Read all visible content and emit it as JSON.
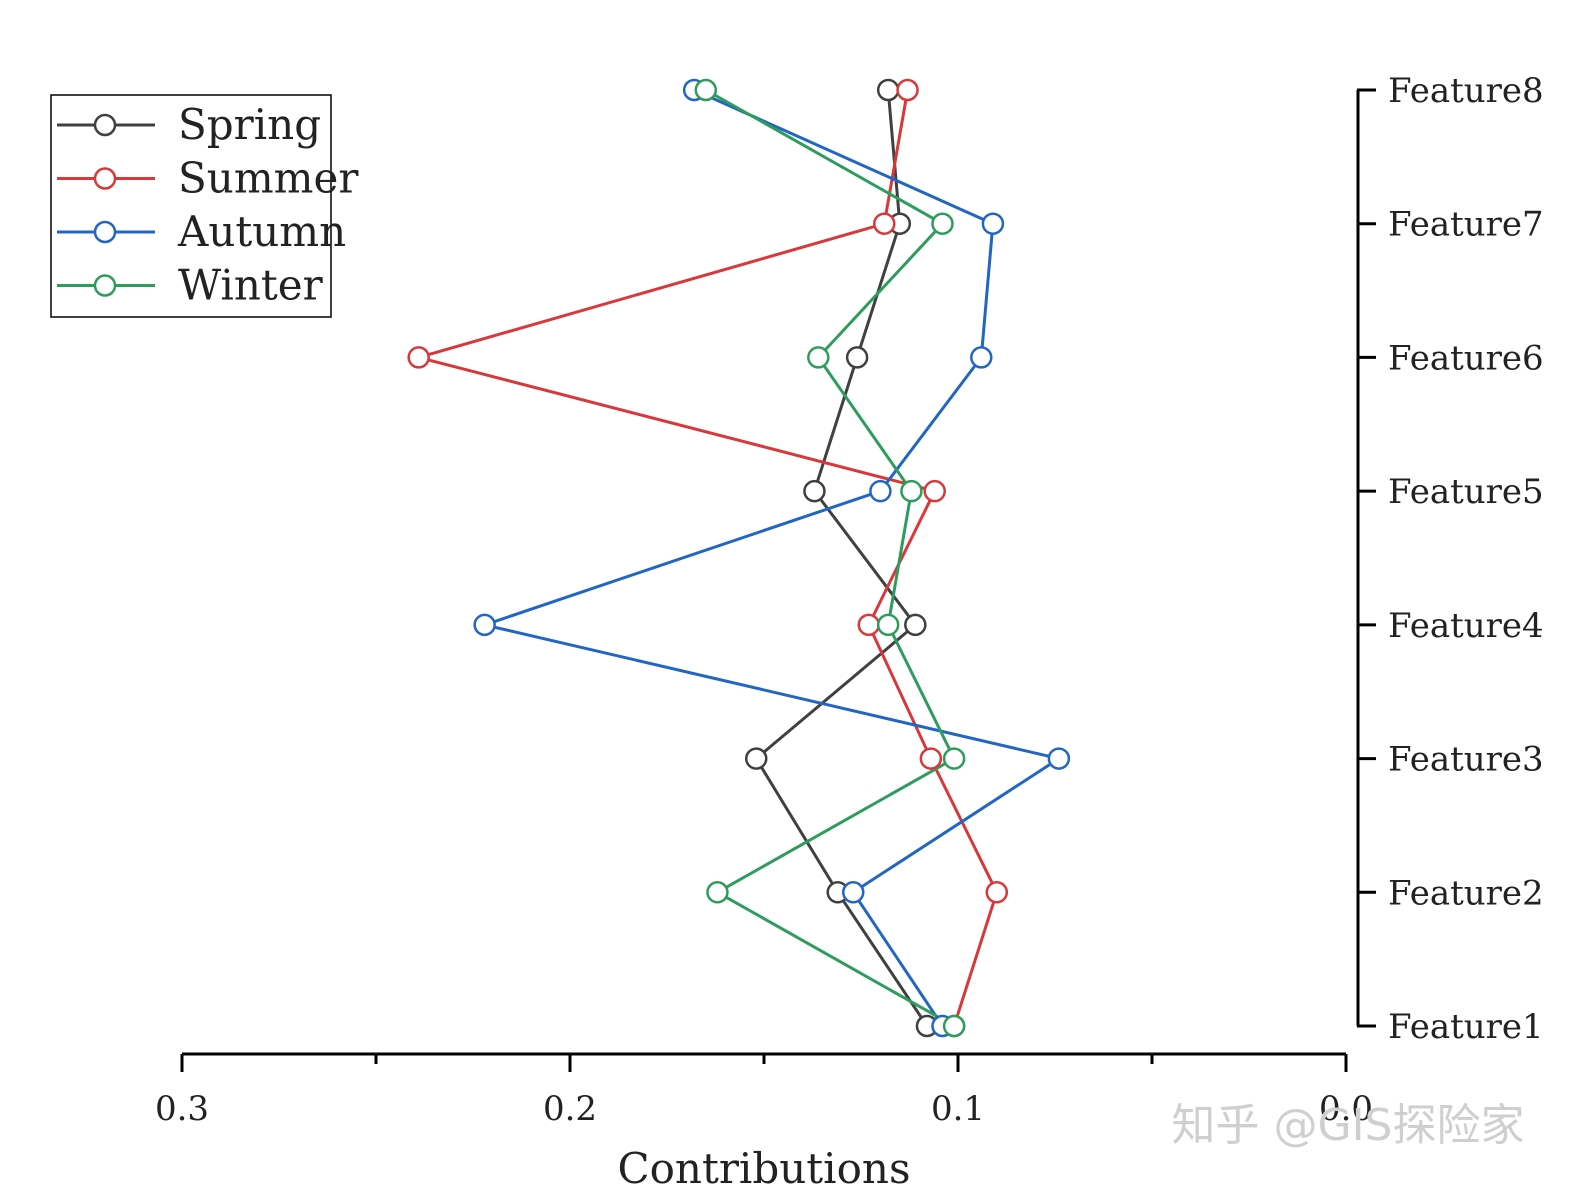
{
  "chart_data": {
    "type": "line",
    "orientation": "horizontal",
    "xlabel": "Contributions",
    "xlim": [
      0.3,
      0.0
    ],
    "xticks": [
      0.3,
      0.2,
      0.1,
      0.0
    ],
    "xtick_labels": [
      "0.3",
      "0.2",
      "0.1",
      "0.0"
    ],
    "categories": [
      "Feature1",
      "Feature2",
      "Feature3",
      "Feature4",
      "Feature5",
      "Feature6",
      "Feature7",
      "Feature8"
    ],
    "legend_position": "top-left",
    "grid": false,
    "series": [
      {
        "name": "Spring",
        "color": "#404040",
        "values": [
          0.108,
          0.131,
          0.152,
          0.111,
          0.137,
          0.126,
          0.115,
          0.118
        ]
      },
      {
        "name": "Summer",
        "color": "#d9383a",
        "values": [
          0.101,
          0.09,
          0.107,
          0.123,
          0.106,
          0.239,
          0.119,
          0.113
        ]
      },
      {
        "name": "Autumn",
        "color": "#2266c4",
        "values": [
          0.104,
          0.127,
          0.074,
          0.222,
          0.12,
          0.094,
          0.091,
          0.168
        ]
      },
      {
        "name": "Winter",
        "color": "#2e9c5c",
        "values": [
          0.101,
          0.162,
          0.101,
          0.118,
          0.112,
          0.136,
          0.104,
          0.165
        ]
      }
    ]
  },
  "watermark": "知乎 @GIS探险家"
}
